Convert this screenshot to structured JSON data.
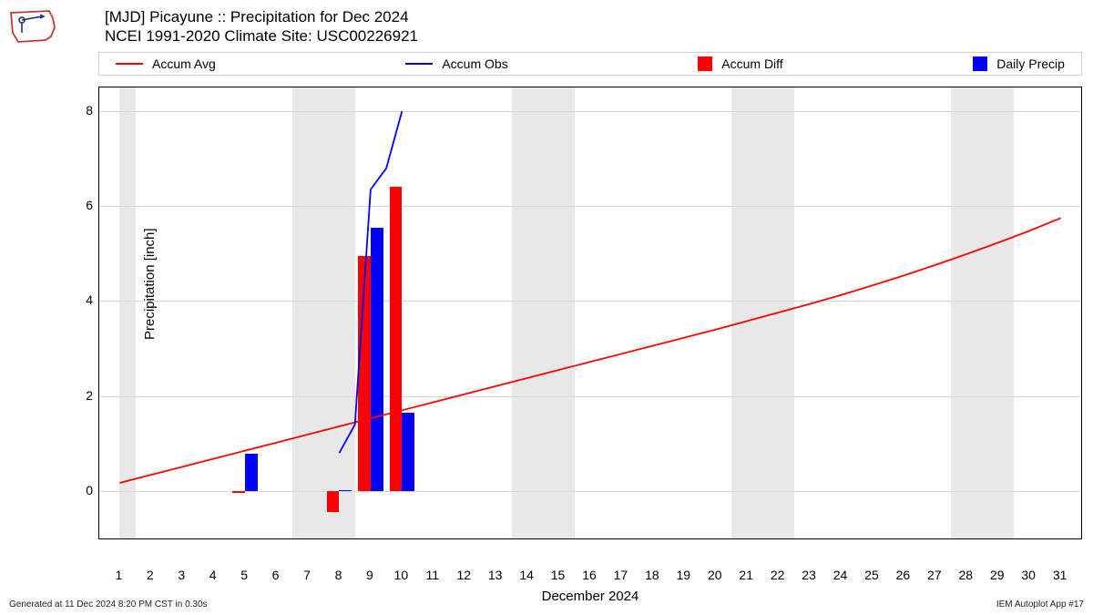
{
  "title_line1": "[MJD] Picayune :: Precipitation for Dec 2024",
  "title_line2": "NCEI 1991-2020 Climate Site: USC00226921",
  "ylabel": "Precipitation [inch]",
  "xlabel": "December 2024",
  "footer_left": "Generated at 11 Dec 2024 8:20 PM CST in 0.30s",
  "footer_right": "IEM Autoplot App #17",
  "legend": [
    {
      "label": "Accum Avg",
      "type": "line",
      "color": "#ff0000"
    },
    {
      "label": "Accum Obs",
      "type": "line",
      "color": "#0000ff"
    },
    {
      "label": "Accum Diff",
      "type": "block",
      "color": "#ff0000"
    },
    {
      "label": "Daily Precip",
      "type": "block",
      "color": "#0000ff"
    }
  ],
  "colors": {
    "accum_avg_line": "#ff0000",
    "accum_obs_line": "#0000ff",
    "accum_diff_bar": "#ff0000",
    "daily_precip_bar": "#0000ff",
    "background": "#ffffff",
    "band_bg": "#e8e8e8",
    "grid": "#d8d8d8",
    "border": "#000000"
  },
  "axes": {
    "x": {
      "min": 0.35,
      "max": 31.65,
      "ticks": [
        1,
        2,
        3,
        4,
        5,
        6,
        7,
        8,
        9,
        10,
        11,
        12,
        13,
        14,
        15,
        16,
        17,
        18,
        19,
        20,
        21,
        22,
        23,
        24,
        25,
        26,
        27,
        28,
        29,
        30,
        31
      ]
    },
    "y": {
      "min": -1.0,
      "max": 8.5,
      "ticks": [
        0,
        2,
        4,
        6,
        8
      ]
    }
  },
  "weekend_bands": [
    [
      1,
      1.5
    ],
    [
      6.5,
      8.5
    ],
    [
      13.5,
      15.5
    ],
    [
      20.5,
      22.5
    ],
    [
      27.5,
      29.5
    ]
  ],
  "accum_avg": [
    [
      1,
      0.17
    ],
    [
      2,
      0.34
    ],
    [
      3,
      0.51
    ],
    [
      4,
      0.68
    ],
    [
      5,
      0.85
    ],
    [
      6,
      1.02
    ],
    [
      7,
      1.19
    ],
    [
      8,
      1.36
    ],
    [
      9,
      1.53
    ],
    [
      10,
      1.7
    ],
    [
      11,
      1.87
    ],
    [
      12,
      2.04
    ],
    [
      13,
      2.21
    ],
    [
      14,
      2.38
    ],
    [
      15,
      2.55
    ],
    [
      16,
      2.72
    ],
    [
      17,
      2.89
    ],
    [
      18,
      3.06
    ],
    [
      19,
      3.23
    ],
    [
      20,
      3.4
    ],
    [
      21,
      3.58
    ],
    [
      22,
      3.76
    ],
    [
      23,
      3.94
    ],
    [
      24,
      4.13
    ],
    [
      25,
      4.33
    ],
    [
      26,
      4.54
    ],
    [
      27,
      4.76
    ],
    [
      28,
      4.99
    ],
    [
      29,
      5.23
    ],
    [
      30,
      5.48
    ],
    [
      31,
      5.75
    ]
  ],
  "accum_obs": [
    [
      8,
      0.8
    ],
    [
      8.5,
      1.4
    ],
    [
      9,
      6.35
    ],
    [
      9.5,
      6.8
    ],
    [
      10,
      8.0
    ]
  ],
  "accum_diff_bars": [
    {
      "day": 5,
      "value": -0.05
    },
    {
      "day": 8,
      "value": -0.45
    },
    {
      "day": 9,
      "value": 4.95
    },
    {
      "day": 10,
      "value": 6.4
    }
  ],
  "daily_precip_bars": [
    {
      "day": 5,
      "value": 0.78
    },
    {
      "day": 8,
      "value": 0.02
    },
    {
      "day": 9,
      "value": 5.55
    },
    {
      "day": 10,
      "value": 1.65
    }
  ],
  "style": {
    "line_width_avg": 1.8,
    "line_width_obs": 1.8,
    "bar_half_width_days": 0.2,
    "title_fontsize": 17,
    "axis_label_fontsize": 15,
    "tick_fontsize": 14
  }
}
